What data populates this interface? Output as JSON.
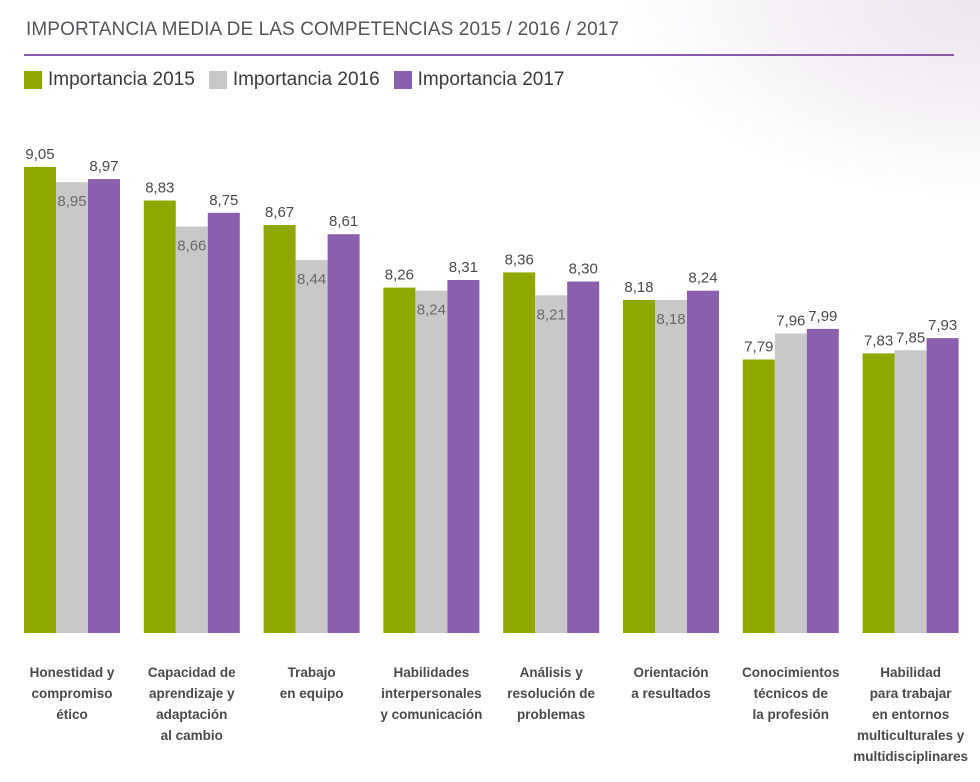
{
  "title": "IMPORTANCIA MEDIA DE LAS COMPETENCIAS 2015 / 2016 / 2017",
  "colors": {
    "s2015": "#8fa800",
    "s2016": "#c8c8c8",
    "s2017": "#8a5fad",
    "rule": "#8a5aa8"
  },
  "legend": [
    {
      "label": "Importancia 2015",
      "color": "#8fa800"
    },
    {
      "label": "Importancia 2016",
      "color": "#c8c8c8"
    },
    {
      "label": "Importancia 2017",
      "color": "#8a5fad"
    }
  ],
  "chart_data": {
    "type": "bar",
    "title": "IMPORTANCIA MEDIA DE LAS COMPETENCIAS 2015 / 2016 / 2017",
    "xlabel": "",
    "ylabel": "",
    "ylim": [
      6.0,
      9.2
    ],
    "grid": false,
    "legend_position": "top-left",
    "categories": [
      [
        "Honestidad y",
        "compromiso",
        "ético"
      ],
      [
        "Capacidad de",
        "aprendizaje y",
        "adaptación",
        "al cambio"
      ],
      [
        "Trabajo",
        "en equipo"
      ],
      [
        "Habilidades",
        "interpersonales",
        "y comunicación"
      ],
      [
        "Análisis y",
        "resolución de",
        "problemas"
      ],
      [
        "Orientación",
        "a resultados"
      ],
      [
        "Conocimientos",
        "técnicos de",
        "la profesión"
      ],
      [
        "Habilidad",
        "para trabajar",
        "en entornos",
        "multiculturales y",
        "multidisciplinares"
      ]
    ],
    "series": [
      {
        "name": "Importancia 2015",
        "values": [
          9.05,
          8.83,
          8.67,
          8.26,
          8.36,
          8.18,
          7.79,
          7.83
        ],
        "labels": [
          "9,05",
          "8,83",
          "8,67",
          "8,26",
          "8,36",
          "8,18",
          "7,79",
          "7,83"
        ]
      },
      {
        "name": "Importancia 2016",
        "values": [
          8.95,
          8.66,
          8.44,
          8.24,
          8.21,
          8.18,
          7.96,
          7.85
        ],
        "labels": [
          "8,95",
          "8,66",
          "8,44",
          "8,24",
          "8,21",
          "8,18",
          "7,96",
          "7,85"
        ]
      },
      {
        "name": "Importancia 2017",
        "values": [
          8.97,
          8.75,
          8.61,
          8.31,
          8.3,
          8.24,
          7.99,
          7.93
        ],
        "labels": [
          "8,97",
          "8,75",
          "8,61",
          "8,31",
          "8,30",
          "8,24",
          "7,99",
          "7,93"
        ]
      }
    ]
  }
}
